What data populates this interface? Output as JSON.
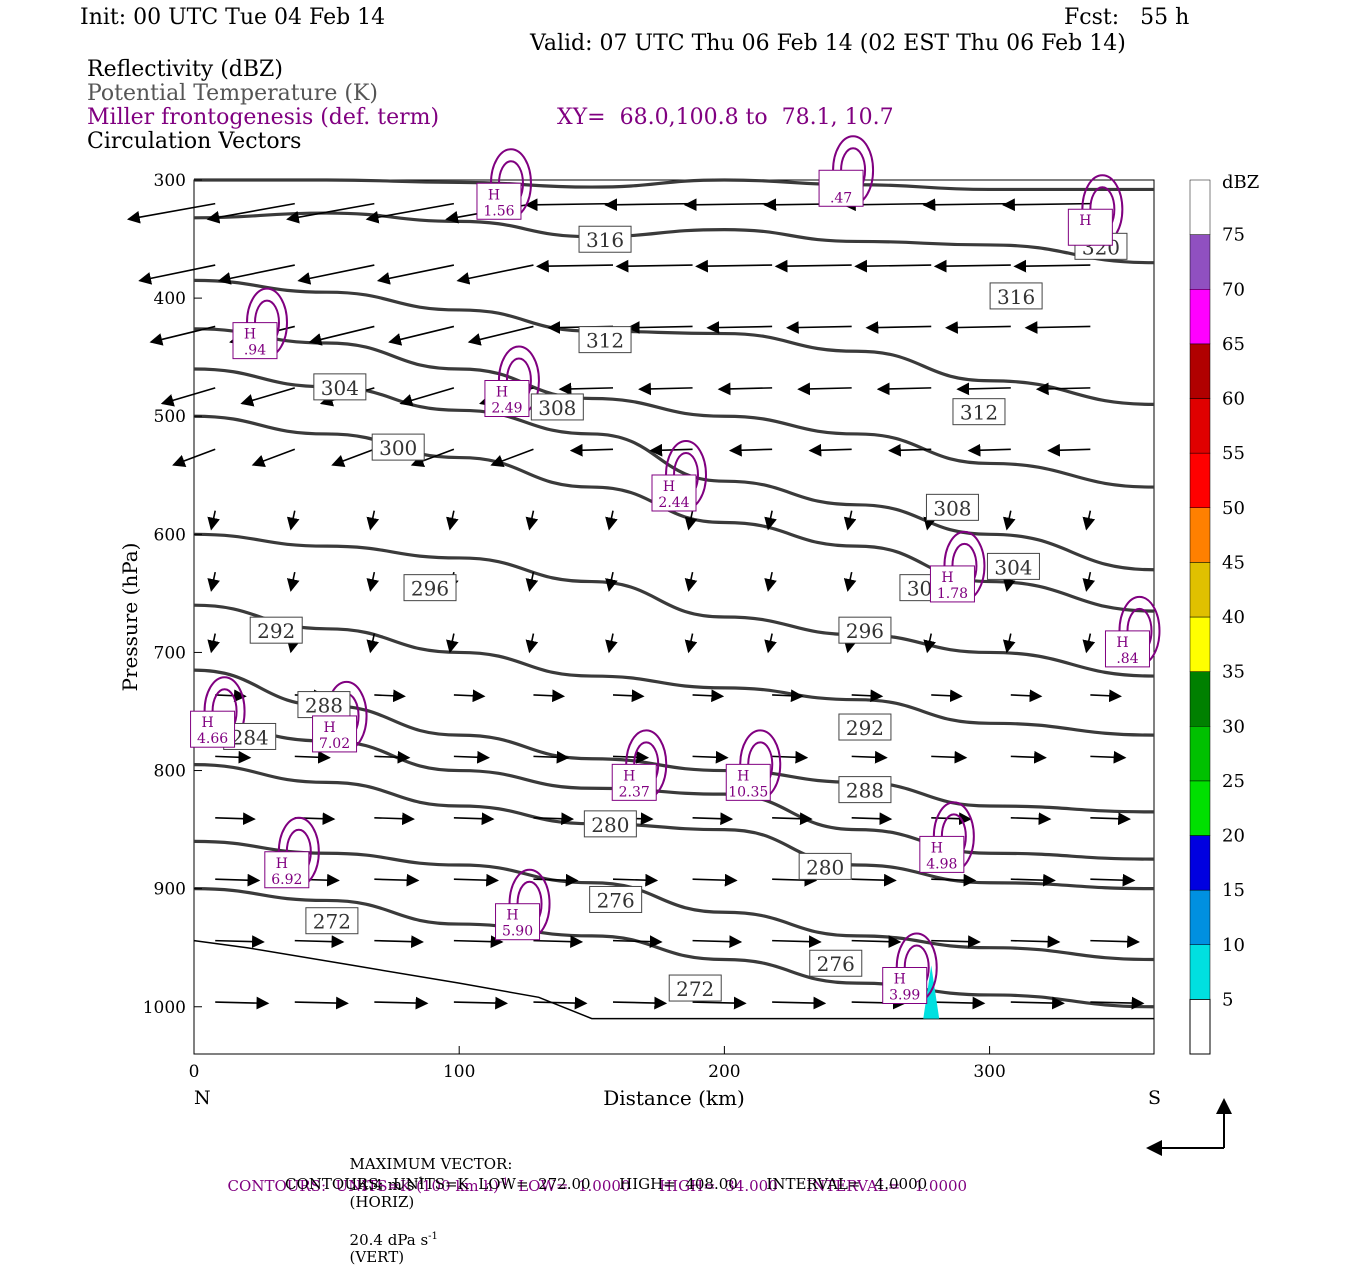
{
  "header": {
    "init": "Init: 00 UTC Tue 04 Feb 14",
    "fcst": "Fcst:   55 h",
    "valid": "Valid: 07 UTC Thu 06 Feb 14 (02 EST Thu 06 Feb 14)",
    "field1": "Reflectivity (dBZ)",
    "field2": "Potential Temperature (K)",
    "field3": "Miller frontogenesis (def. term)",
    "xy": "XY=  68.0,100.8 to  78.1, 10.7",
    "field4": "Circulation Vectors"
  },
  "footer": {
    "max_vector_label": "MAXIMUM VECTOR:",
    "max_horiz": "14.4 m s",
    "horiz_tag": "(HORIZ)",
    "max_vert": "20.4 dPa s",
    "vert_tag": "(VERT)",
    "contours1": "CONTOURS:  UNITS=K (100 km h)",
    "contours1_tail": "  LOW=  1.0000      HIGH=  34.000      INTERVAL=   1.0000",
    "contours2": "CONTOURS:  UNITS=K  LOW=  272.00      HIGH=  408.00      INTERVAL=   4.0000"
  },
  "colors": {
    "theta": "#3a3a3a",
    "frontogenesis": "#800080",
    "vector": "#000000",
    "label_purple": "#800080"
  },
  "chart_data": {
    "type": "line",
    "xlabel": "Distance (km)",
    "ylabel": "Pressure (hPa)",
    "xlim": [
      0,
      362
    ],
    "ylim": [
      1040,
      300
    ],
    "y_scale": "linear-pressure",
    "x_ticks": [
      "0",
      "100",
      "200",
      "300"
    ],
    "x_tick_values": [
      0,
      100,
      200,
      300
    ],
    "y_ticks": [
      "300",
      "400",
      "500",
      "600",
      "700",
      "800",
      "900",
      "1000"
    ],
    "y_tick_values": [
      300,
      400,
      500,
      600,
      700,
      800,
      900,
      1000
    ],
    "x_end_labels": {
      "left": "N",
      "right": "S"
    },
    "theta_contours": [
      {
        "name": "316",
        "x": [
          0,
          50,
          100,
          150,
          200,
          250,
          300,
          362
        ],
        "p": [
          332,
          328,
          335,
          348,
          342,
          352,
          355,
          370
        ]
      },
      {
        "name": "320",
        "x": [
          0,
          50,
          100,
          150,
          200,
          250,
          300,
          362
        ],
        "p": [
          300,
          300,
          302,
          306,
          300,
          304,
          308,
          308
        ]
      },
      {
        "name": "312",
        "x": [
          0,
          50,
          100,
          150,
          200,
          250,
          300,
          362
        ],
        "p": [
          385,
          395,
          410,
          428,
          430,
          445,
          470,
          490
        ]
      },
      {
        "name": "308",
        "x": [
          0,
          50,
          100,
          150,
          200,
          250,
          300,
          362
        ],
        "p": [
          426,
          438,
          460,
          485,
          500,
          515,
          540,
          560
        ]
      },
      {
        "name": "304",
        "x": [
          0,
          50,
          100,
          150,
          200,
          250,
          300,
          362
        ],
        "p": [
          460,
          475,
          495,
          515,
          555,
          575,
          600,
          630
        ]
      },
      {
        "name": "300",
        "x": [
          0,
          50,
          100,
          150,
          200,
          250,
          300,
          362
        ],
        "p": [
          500,
          515,
          535,
          560,
          590,
          610,
          640,
          665
        ]
      },
      {
        "name": "296",
        "x": [
          0,
          50,
          100,
          150,
          200,
          250,
          300,
          362
        ],
        "p": [
          600,
          610,
          620,
          640,
          670,
          685,
          700,
          720
        ]
      },
      {
        "name": "292",
        "x": [
          0,
          50,
          100,
          150,
          200,
          250,
          300,
          362
        ],
        "p": [
          660,
          680,
          700,
          720,
          730,
          740,
          760,
          770
        ]
      },
      {
        "name": "288",
        "x": [
          0,
          50,
          100,
          150,
          200,
          250,
          300,
          362
        ],
        "p": [
          715,
          745,
          770,
          790,
          800,
          810,
          830,
          835
        ]
      },
      {
        "name": "284",
        "x": [
          0,
          50,
          100,
          150,
          200,
          250,
          300,
          362
        ],
        "p": [
          760,
          775,
          800,
          815,
          820,
          850,
          870,
          875
        ]
      },
      {
        "name": "280",
        "x": [
          0,
          50,
          100,
          150,
          200,
          250,
          300,
          362
        ],
        "p": [
          795,
          810,
          830,
          845,
          850,
          880,
          895,
          900
        ]
      },
      {
        "name": "276",
        "x": [
          0,
          50,
          100,
          150,
          200,
          250,
          300,
          362
        ],
        "p": [
          860,
          870,
          880,
          895,
          920,
          940,
          950,
          960
        ]
      },
      {
        "name": "272",
        "x": [
          0,
          50,
          100,
          150,
          200,
          250,
          300,
          362
        ],
        "p": [
          900,
          910,
          930,
          940,
          960,
          980,
          990,
          1000
        ]
      }
    ],
    "theta_labels": [
      {
        "text": "316",
        "x": 155,
        "p": 351
      },
      {
        "text": "320",
        "x": 342,
        "p": 357
      },
      {
        "text": "316",
        "x": 310,
        "p": 399
      },
      {
        "text": "312",
        "x": 155,
        "p": 436
      },
      {
        "text": "304",
        "x": 55,
        "p": 476
      },
      {
        "text": "308",
        "x": 137,
        "p": 493
      },
      {
        "text": "312",
        "x": 296,
        "p": 497
      },
      {
        "text": "300",
        "x": 77,
        "p": 527
      },
      {
        "text": "308",
        "x": 286,
        "p": 578
      },
      {
        "text": "304",
        "x": 309,
        "p": 628
      },
      {
        "text": "300",
        "x": 276,
        "p": 646
      },
      {
        "text": "296",
        "x": 89,
        "p": 646
      },
      {
        "text": "292",
        "x": 31,
        "p": 682
      },
      {
        "text": "296",
        "x": 253,
        "p": 682
      },
      {
        "text": "288",
        "x": 49,
        "p": 745
      },
      {
        "text": "284",
        "x": 21,
        "p": 772
      },
      {
        "text": "292",
        "x": 253,
        "p": 764
      },
      {
        "text": "288",
        "x": 253,
        "p": 817
      },
      {
        "text": "280",
        "x": 157,
        "p": 846
      },
      {
        "text": "280",
        "x": 238,
        "p": 882
      },
      {
        "text": "276",
        "x": 159,
        "p": 910
      },
      {
        "text": "272",
        "x": 52,
        "p": 928
      },
      {
        "text": "276",
        "x": 242,
        "p": 964
      },
      {
        "text": "272",
        "x": 189,
        "p": 985
      }
    ],
    "frontogenesis_maxima": [
      {
        "text": "H",
        "value": "1.56",
        "x": 115,
        "p": 318
      },
      {
        "text": "",
        "value": ".47",
        "x": 244,
        "p": 307
      },
      {
        "text": "H",
        "value": "",
        "x": 338,
        "p": 340
      },
      {
        "text": "H",
        "value": ".94",
        "x": 23,
        "p": 436
      },
      {
        "text": "H",
        "value": "2.49",
        "x": 118,
        "p": 485
      },
      {
        "text": "H",
        "value": "2.44",
        "x": 181,
        "p": 565
      },
      {
        "text": "H",
        "value": "1.78",
        "x": 286,
        "p": 642
      },
      {
        "text": "H",
        "value": ".84",
        "x": 352,
        "p": 697
      },
      {
        "text": "H",
        "value": "4.66",
        "x": 7,
        "p": 765
      },
      {
        "text": "H",
        "value": "7.02",
        "x": 53,
        "p": 769
      },
      {
        "text": "H",
        "value": "2.37",
        "x": 166,
        "p": 810
      },
      {
        "text": "H",
        "value": "10.35",
        "x": 209,
        "p": 810
      },
      {
        "text": "H",
        "value": "4.98",
        "x": 282,
        "p": 871
      },
      {
        "text": "H",
        "value": "6.92",
        "x": 35,
        "p": 884
      },
      {
        "text": "H",
        "value": "5.90",
        "x": 122,
        "p": 928
      },
      {
        "text": "H",
        "value": "3.99",
        "x": 268,
        "p": 982
      }
    ],
    "colorbar": {
      "label": "dBZ",
      "ticks": [
        "5",
        "10",
        "15",
        "20",
        "25",
        "30",
        "35",
        "40",
        "45",
        "50",
        "55",
        "60",
        "65",
        "70",
        "75"
      ],
      "colors": [
        "#00e0e0",
        "#0090e0",
        "#0000e0",
        "#00e000",
        "#00c000",
        "#008000",
        "#ffff00",
        "#e0c000",
        "#ff8000",
        "#ff0000",
        "#e00000",
        "#b00000",
        "#ff00ff",
        "#9050c0",
        "#ffffff"
      ]
    },
    "reflectivity_echo": {
      "x": 278,
      "p": [
        965,
        1010
      ],
      "color": "#00e0e0"
    }
  }
}
